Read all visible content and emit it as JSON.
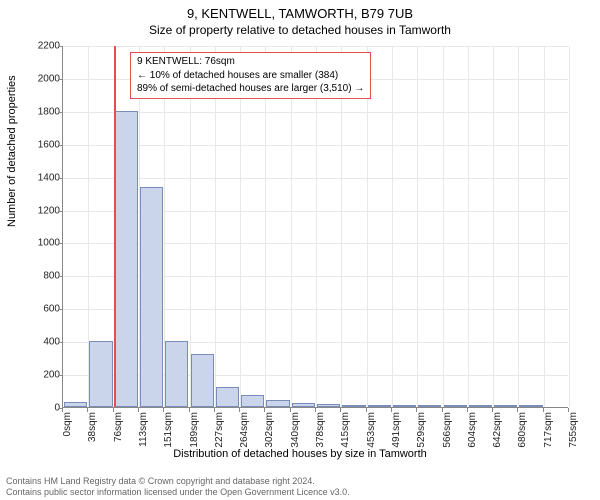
{
  "title": "9, KENTWELL, TAMWORTH, B79 7UB",
  "subtitle": "Size of property relative to detached houses in Tamworth",
  "chart": {
    "type": "bar",
    "y_label": "Number of detached properties",
    "x_label": "Distribution of detached houses by size in Tamworth",
    "ylim": [
      0,
      2200
    ],
    "y_ticks": [
      0,
      200,
      400,
      600,
      800,
      1000,
      1200,
      1400,
      1600,
      1800,
      2000,
      2200
    ],
    "x_tick_labels": [
      "0sqm",
      "38sqm",
      "76sqm",
      "113sqm",
      "151sqm",
      "189sqm",
      "227sqm",
      "264sqm",
      "302sqm",
      "340sqm",
      "378sqm",
      "415sqm",
      "453sqm",
      "491sqm",
      "529sqm",
      "566sqm",
      "604sqm",
      "642sqm",
      "680sqm",
      "717sqm",
      "755sqm"
    ],
    "x_tick_count": 21,
    "bars": [
      30,
      400,
      1800,
      1340,
      400,
      320,
      120,
      70,
      40,
      25,
      20,
      15,
      10,
      8,
      6,
      5,
      4,
      3,
      2,
      0
    ],
    "bar_fill": "#cad5ec",
    "bar_border": "#7a8db8",
    "grid_color": "#e8e8e8",
    "axis_color": "#888888",
    "indicator_color": "#e05050",
    "indicator_at": 76,
    "x_max": 755,
    "background": "#ffffff",
    "tick_fontsize": 10,
    "label_fontsize": 11,
    "title_fontsize": 13,
    "subtitle_fontsize": 12
  },
  "annotation": {
    "line1": "9 KENTWELL: 76sqm",
    "line2": "← 10% of detached houses are smaller (384)",
    "line3": "89% of semi-detached houses are larger (3,510) →",
    "border_color": "#e05050"
  },
  "footer": {
    "line1": "Contains HM Land Registry data © Crown copyright and database right 2024.",
    "line2": "Contains public sector information licensed under the Open Government Licence v3.0."
  }
}
